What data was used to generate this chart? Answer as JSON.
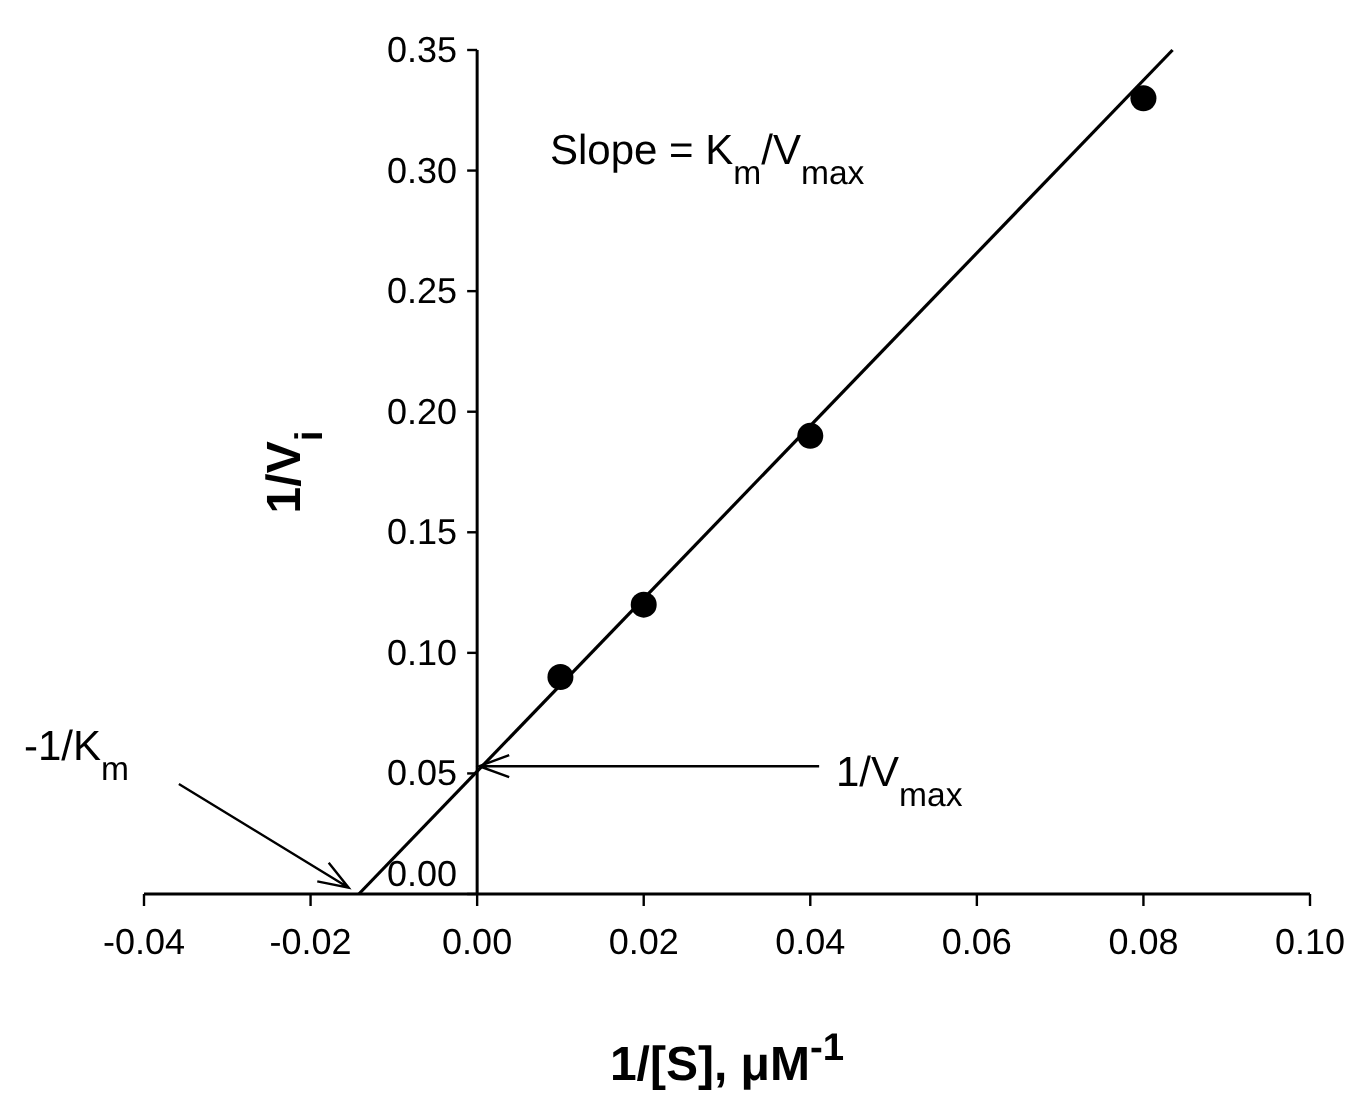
{
  "chart_data": {
    "type": "scatter",
    "xlabel": "1/[S], μM$^{-1}$",
    "ylabel": "1/V$_{i}$",
    "xlim": [
      -0.04,
      0.1
    ],
    "ylim": [
      0,
      0.35
    ],
    "xticks": [
      {
        "value": -0.04,
        "label": "-0.04"
      },
      {
        "value": -0.02,
        "label": "-0.02"
      },
      {
        "value": 0,
        "label": "0.00"
      },
      {
        "value": 0.02,
        "label": "0.02"
      },
      {
        "value": 0.04,
        "label": "0.04"
      },
      {
        "value": 0.06,
        "label": "0.06"
      },
      {
        "value": 0.08,
        "label": "0.08"
      },
      {
        "value": 0.1,
        "label": "0.10"
      }
    ],
    "yticks": [
      {
        "value": 0,
        "label": "0.00"
      },
      {
        "value": 0.05,
        "label": "0.05"
      },
      {
        "value": 0.1,
        "label": "0.10"
      },
      {
        "value": 0.15,
        "label": "0.15"
      },
      {
        "value": 0.2,
        "label": "0.20"
      },
      {
        "value": 0.25,
        "label": "0.25"
      },
      {
        "value": 0.3,
        "label": "0.30"
      },
      {
        "value": 0.35,
        "label": "0.35"
      }
    ],
    "marker": "circle",
    "grid": false,
    "series": [
      {
        "color": "#000000",
        "x": [
          0.01,
          0.02,
          0.04,
          0.08
        ],
        "values": [
          0.09,
          0.12,
          0.19,
          0.33
        ]
      },
      {
        "type": "line",
        "color": "#000000",
        "marker": "none",
        "x": [
          -0.0142,
          0.0835
        ],
        "values": [
          0,
          0.35
        ]
      }
    ],
    "annotations": [
      "Slope = K$_{m}$/V$_{max}$",
      {
        "text": "-1/K$_{m}$",
        "x": -0.0142,
        "y": 0
      },
      {
        "text": "1/V$_{max}$",
        "x": 0,
        "y": 0.053
      }
    ]
  }
}
